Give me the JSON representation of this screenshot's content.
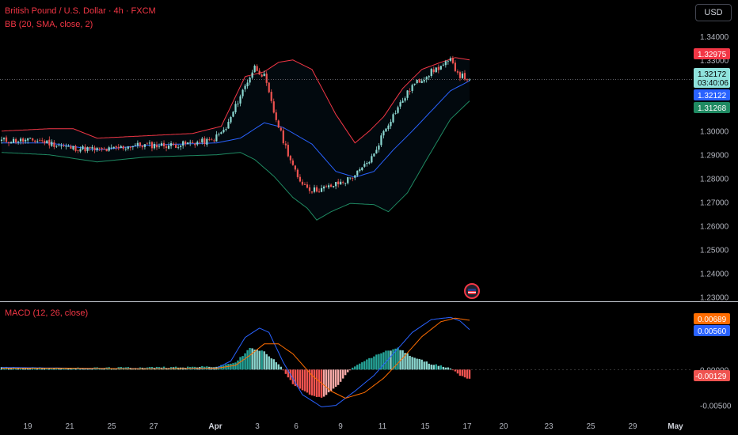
{
  "header": {
    "title": "British Pound / U.S. Dollar · 4h · FXCM",
    "bb_label": "BB (20, SMA, close, 2)",
    "currency_button": "USD"
  },
  "colors": {
    "up": "#26a69a",
    "up_light": "#8cd8d1",
    "down": "#ef5350",
    "down_light": "#f7a9a7",
    "bb_upper": "#f23645",
    "bb_lower": "#1f8a62",
    "bb_basis": "#2962ff",
    "macd_line": "#2962ff",
    "signal_line": "#ff6d00",
    "axis_text": "#b2b5be"
  },
  "icons": {
    "event_flag": "us-flag-icon"
  },
  "chart_data": [
    {
      "type": "candlestick",
      "title": "British Pound / U.S. Dollar · 4h · FXCM",
      "y_ticks": [
        "1.34000",
        "1.33000",
        "1.32000",
        "1.31000",
        "1.30000",
        "1.29000",
        "1.28000",
        "1.27000",
        "1.26000",
        "1.25000",
        "1.24000",
        "1.23000"
      ],
      "ylim": [
        1.2292,
        1.3436
      ],
      "x_ticks": [
        "19",
        "21",
        "25",
        "27",
        "Apr",
        "3",
        "6",
        "9",
        "11",
        "15",
        "17",
        "20",
        "23",
        "25",
        "29",
        "May"
      ],
      "price_labels": [
        {
          "name": "bb_upper",
          "value": "1.32975"
        },
        {
          "name": "last_price",
          "value": "1.32172",
          "countdown": "03:40:06"
        },
        {
          "name": "bb_basis",
          "value": "1.32122"
        },
        {
          "name": "bb_lower",
          "value": "1.31268"
        }
      ],
      "close_anchors": [
        [
          0,
          1.296
        ],
        [
          16,
          1.296
        ],
        [
          28,
          1.293
        ],
        [
          44,
          1.292
        ],
        [
          56,
          1.294
        ],
        [
          72,
          1.294
        ],
        [
          88,
          1.296
        ],
        [
          94,
          1.301
        ],
        [
          100,
          1.315
        ],
        [
          106,
          1.327
        ],
        [
          110,
          1.323
        ],
        [
          114,
          1.308
        ],
        [
          118,
          1.296
        ],
        [
          124,
          1.28
        ],
        [
          130,
          1.275
        ],
        [
          136,
          1.276
        ],
        [
          144,
          1.279
        ],
        [
          150,
          1.283
        ],
        [
          156,
          1.29
        ],
        [
          160,
          1.3
        ],
        [
          166,
          1.31
        ],
        [
          172,
          1.319
        ],
        [
          180,
          1.325
        ],
        [
          188,
          1.3295
        ],
        [
          192,
          1.3235
        ],
        [
          196,
          1.3217
        ]
      ],
      "bb_upper_anchors": [
        [
          0,
          1.3
        ],
        [
          20,
          1.301
        ],
        [
          30,
          1.301
        ],
        [
          40,
          1.297
        ],
        [
          60,
          1.298
        ],
        [
          80,
          1.299
        ],
        [
          92,
          1.302
        ],
        [
          102,
          1.323
        ],
        [
          110,
          1.325
        ],
        [
          116,
          1.329
        ],
        [
          122,
          1.33
        ],
        [
          130,
          1.326
        ],
        [
          140,
          1.307
        ],
        [
          148,
          1.295
        ],
        [
          154,
          1.3
        ],
        [
          160,
          1.306
        ],
        [
          168,
          1.318
        ],
        [
          176,
          1.326
        ],
        [
          184,
          1.329
        ],
        [
          190,
          1.331
        ],
        [
          196,
          1.33
        ]
      ],
      "bb_lower_anchors": [
        [
          0,
          1.291
        ],
        [
          20,
          1.29
        ],
        [
          40,
          1.287
        ],
        [
          60,
          1.289
        ],
        [
          90,
          1.29
        ],
        [
          100,
          1.291
        ],
        [
          106,
          1.288
        ],
        [
          114,
          1.281
        ],
        [
          122,
          1.272
        ],
        [
          128,
          1.2675
        ],
        [
          132,
          1.2625
        ],
        [
          138,
          1.266
        ],
        [
          146,
          1.2695
        ],
        [
          156,
          1.269
        ],
        [
          162,
          1.266
        ],
        [
          170,
          1.274
        ],
        [
          178,
          1.288
        ],
        [
          188,
          1.305
        ],
        [
          196,
          1.3127
        ]
      ],
      "bb_basis_anchors": [
        [
          0,
          1.295
        ],
        [
          20,
          1.295
        ],
        [
          40,
          1.292
        ],
        [
          60,
          1.294
        ],
        [
          90,
          1.295
        ],
        [
          100,
          1.297
        ],
        [
          110,
          1.3035
        ],
        [
          118,
          1.3015
        ],
        [
          130,
          1.2945
        ],
        [
          140,
          1.283
        ],
        [
          148,
          1.2805
        ],
        [
          156,
          1.283
        ],
        [
          164,
          1.292
        ],
        [
          172,
          1.3
        ],
        [
          180,
          1.3085
        ],
        [
          188,
          1.317
        ],
        [
          196,
          1.3212
        ]
      ]
    },
    {
      "type": "macd",
      "title": "MACD (12, 26, close)",
      "y_ticks": [
        "0.00000",
        "-0.00500"
      ],
      "ylim": [
        -0.0077,
        0.0091
      ],
      "value_labels": [
        {
          "name": "signal",
          "value": "0.00689"
        },
        {
          "name": "macd",
          "value": "0.00560"
        },
        {
          "name": "histogram",
          "value": "-0.00129"
        }
      ],
      "macd_anchors": [
        [
          0,
          0.0003
        ],
        [
          30,
          0.0002
        ],
        [
          60,
          0.0001
        ],
        [
          90,
          0.0002
        ],
        [
          96,
          0.0012
        ],
        [
          102,
          0.0045
        ],
        [
          108,
          0.0058
        ],
        [
          112,
          0.0052
        ],
        [
          118,
          0.001
        ],
        [
          126,
          -0.0035
        ],
        [
          134,
          -0.0052
        ],
        [
          140,
          -0.005
        ],
        [
          148,
          -0.003
        ],
        [
          156,
          -0.0008
        ],
        [
          164,
          0.0022
        ],
        [
          172,
          0.0052
        ],
        [
          180,
          0.007
        ],
        [
          188,
          0.0073
        ],
        [
          192,
          0.0068
        ],
        [
          196,
          0.0056
        ]
      ],
      "signal_anchors": [
        [
          0,
          0.0002
        ],
        [
          30,
          0.0002
        ],
        [
          60,
          0.0001
        ],
        [
          90,
          0.0002
        ],
        [
          98,
          0.0006
        ],
        [
          104,
          0.002
        ],
        [
          110,
          0.0036
        ],
        [
          116,
          0.0036
        ],
        [
          122,
          0.0022
        ],
        [
          130,
          -0.0008
        ],
        [
          138,
          -0.003
        ],
        [
          144,
          -0.004
        ],
        [
          152,
          -0.0032
        ],
        [
          160,
          -0.0012
        ],
        [
          168,
          0.0016
        ],
        [
          176,
          0.0046
        ],
        [
          184,
          0.0067
        ],
        [
          190,
          0.0072
        ],
        [
          196,
          0.0069
        ]
      ],
      "histogram_anchors": [
        [
          0,
          0.0003
        ],
        [
          30,
          0.0002
        ],
        [
          60,
          0.0003
        ],
        [
          90,
          0.0004
        ],
        [
          98,
          0.001
        ],
        [
          104,
          0.003
        ],
        [
          110,
          0.0025
        ],
        [
          116,
          0.0008
        ],
        [
          122,
          -0.002
        ],
        [
          130,
          -0.0036
        ],
        [
          134,
          -0.004
        ],
        [
          140,
          -0.0025
        ],
        [
          146,
          0.0
        ],
        [
          152,
          0.0012
        ],
        [
          160,
          0.0025
        ],
        [
          166,
          0.003
        ],
        [
          172,
          0.0018
        ],
        [
          180,
          0.0008
        ],
        [
          188,
          0.0002
        ],
        [
          192,
          -0.0008
        ],
        [
          196,
          -0.0013
        ]
      ]
    }
  ]
}
